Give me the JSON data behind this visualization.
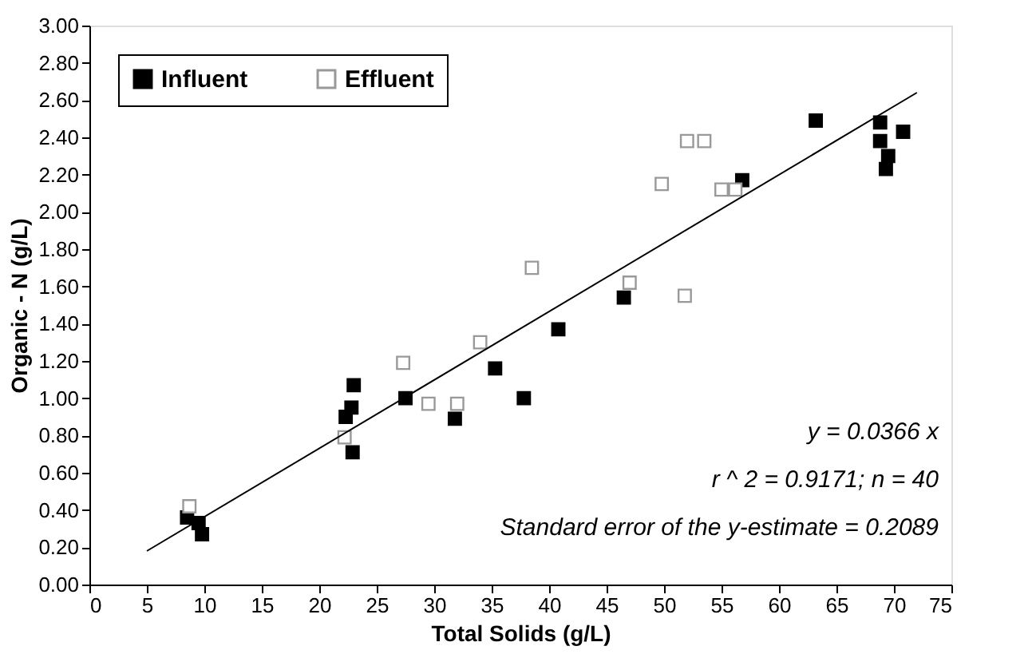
{
  "chart_data": {
    "type": "scatter",
    "xlabel": "Total Solids (g/L)",
    "ylabel": "Organic - N (g/L)",
    "xlim": [
      0,
      75
    ],
    "xticks": [
      0,
      5,
      10,
      15,
      20,
      25,
      30,
      35,
      40,
      45,
      50,
      55,
      60,
      65,
      70,
      75
    ],
    "ylim": [
      0,
      3
    ],
    "yticks": [
      {
        "value": 0,
        "label": "0.00"
      },
      {
        "value": 0.2,
        "label": "0.20"
      },
      {
        "value": 0.4,
        "label": "0.40"
      },
      {
        "value": 0.6,
        "label": "0.60"
      },
      {
        "value": 0.8,
        "label": "0.80"
      },
      {
        "value": 1,
        "label": "1.00"
      },
      {
        "value": 1.2,
        "label": "1.20"
      },
      {
        "value": 1.4,
        "label": "1.40"
      },
      {
        "value": 1.6,
        "label": "1.60"
      },
      {
        "value": 1.8,
        "label": "1.80"
      },
      {
        "value": 2,
        "label": "2.00"
      },
      {
        "value": 2.2,
        "label": "2.20"
      },
      {
        "value": 2.4,
        "label": "2.40"
      },
      {
        "value": 2.6,
        "label": "2.60"
      },
      {
        "value": 2.8,
        "label": "2.80"
      },
      {
        "value": 3,
        "label": "3.00"
      }
    ],
    "grid": false,
    "legend": "top left",
    "series": [
      {
        "name": "Influent",
        "color": "#000000",
        "marker": "square",
        "x": [
          8.5,
          9.5,
          9.8,
          22.3,
          22.8,
          23,
          22.9,
          27.5,
          31.8,
          35.3,
          37.8,
          40.8,
          46.5,
          56.8,
          63.2,
          68.8,
          68.8,
          69.5,
          69.3,
          70.8
        ],
        "values": [
          0.36,
          0.33,
          0.27,
          0.9,
          0.95,
          1.07,
          0.71,
          1.0,
          0.89,
          1.16,
          1.0,
          1.37,
          1.54,
          2.17,
          2.49,
          2.48,
          2.38,
          2.3,
          2.23,
          2.43
        ]
      },
      {
        "name": "Effluent",
        "color": "#999999",
        "marker": "square",
        "x": [
          8.7,
          22.2,
          27.3,
          29.5,
          32,
          34,
          38.5,
          47,
          49.8,
          52,
          53.5,
          51.8,
          55,
          56.2
        ],
        "values": [
          0.42,
          0.79,
          1.19,
          0.97,
          0.97,
          1.3,
          1.7,
          1.62,
          2.15,
          2.38,
          2.38,
          1.55,
          2.12,
          2.12
        ]
      },
      {
        "type": "line",
        "color": "#000000",
        "x": [
          5,
          72
        ],
        "values": [
          0.18,
          2.64
        ]
      }
    ],
    "annotations": [
      "y = 0.0366 x",
      "r ^ 2 = 0.9171; n = 40",
      "Standard error of the y-estimate = 0.2089"
    ]
  }
}
